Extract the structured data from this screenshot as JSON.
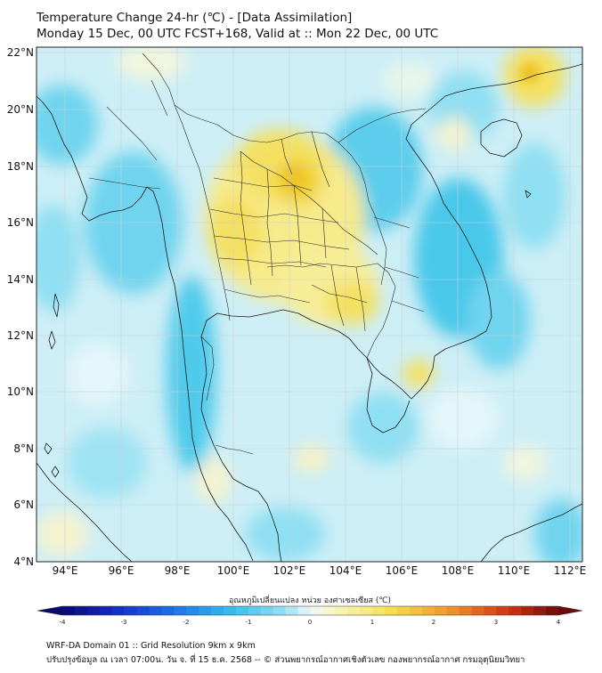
{
  "title": {
    "line1": "Temperature Change 24-hr (℃) - [Data Assimilation]",
    "line2": "Monday 15 Dec, 00 UTC FCST+168, Valid at :: Mon 22 Dec, 00 UTC"
  },
  "map": {
    "lat_labels": [
      "22°N",
      "20°N",
      "18°N",
      "16°N",
      "14°N",
      "12°N",
      "10°N",
      "8°N",
      "6°N",
      "4°N"
    ],
    "lon_labels": [
      "94°E",
      "96°E",
      "98°E",
      "100°E",
      "102°E",
      "104°E",
      "106°E",
      "108°E",
      "110°E",
      "112°E"
    ],
    "lat_range": [
      4,
      22
    ],
    "lon_range": [
      93,
      112.5
    ]
  },
  "colorbar": {
    "title": "อุณหภูมิเปลี่ยนแปลง หน่วย องศาเซลเซียส (℃)",
    "ticks": [
      "-4",
      "-3",
      "-2",
      "-1",
      "0",
      "1",
      "2",
      "3",
      "4"
    ],
    "range": [
      -4,
      4
    ]
  },
  "footer": {
    "line1": "WRF-DA Domain 01 :: Grid Resolution 9km x 9km",
    "line2": "ปรับปรุงข้อมูล ณ เวลา 07:00น. วัน จ. ที่ 15 ธ.ค. 2568 -- © ส่วนพยากรณ์อากาศเชิงตัวเลข กองพยากรณ์อากาศ กรมอุตุนิยมวิทยา"
  },
  "colors": {
    "neg_light": "#cdeef6",
    "neg_mid": "#7fdaf0",
    "neg_strong": "#3cc6ea",
    "pos_light": "#fbf3c4",
    "pos_mid": "#f7e87a",
    "pos_strong": "#f2d43d"
  }
}
